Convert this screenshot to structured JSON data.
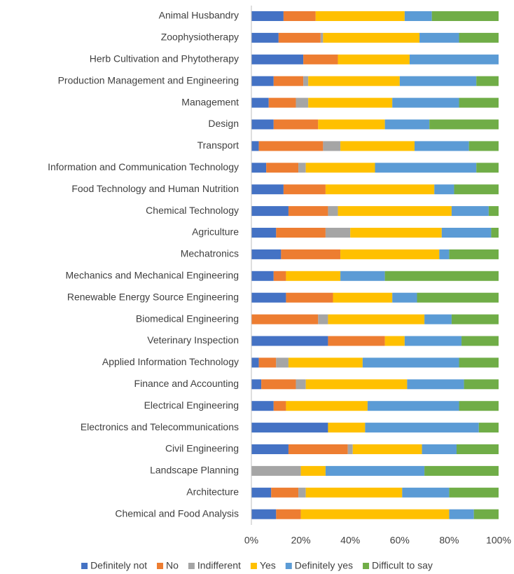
{
  "chart_data": {
    "type": "stacked_bar_horizontal",
    "categories": [
      "Animal Husbandry",
      "Zoophysiotherapy",
      "Herb Cultivation and Phytotherapy",
      "Production Management and Engineering",
      "Management",
      "Design",
      "Transport",
      "Information and Communication Technology",
      "Food Technology and Human Nutrition",
      "Chemical Technology",
      "Agriculture",
      "Mechatronics",
      "Mechanics and Mechanical Engineering",
      "Renewable Energy Source Engineering",
      "Biomedical Engineering",
      "Veterinary Inspection",
      "Applied Information Technology",
      "Finance and Accounting",
      "Electrical Engineering",
      "Electronics and Telecommunications",
      "Civil Engineering",
      "Landscape Planning",
      "Architecture",
      "Chemical and Food Analysis"
    ],
    "series": [
      {
        "name": "Definitely not",
        "color": "#4472c4",
        "values": [
          13,
          11,
          21,
          9,
          7,
          9,
          3,
          6,
          13,
          15,
          10,
          12,
          9,
          14,
          0,
          31,
          3,
          4,
          9,
          31,
          15,
          0,
          8,
          10
        ]
      },
      {
        "name": "No",
        "color": "#ed7d31",
        "values": [
          13,
          17,
          14,
          12,
          11,
          18,
          26,
          13,
          17,
          16,
          20,
          24,
          5,
          19,
          27,
          23,
          7,
          14,
          5,
          0,
          24,
          0,
          11,
          10
        ]
      },
      {
        "name": "Indifferent",
        "color": "#a5a5a5",
        "values": [
          0,
          1,
          0,
          2,
          5,
          0,
          7,
          3,
          0,
          4,
          10,
          0,
          0,
          0,
          4,
          0,
          5,
          4,
          0,
          0,
          2,
          20,
          3,
          0
        ]
      },
      {
        "name": "Yes",
        "color": "#ffc000",
        "values": [
          36,
          39,
          29,
          37,
          34,
          27,
          30,
          28,
          44,
          46,
          37,
          40,
          22,
          24,
          39,
          8,
          30,
          41,
          33,
          15,
          28,
          10,
          39,
          60
        ]
      },
      {
        "name": "Definitely yes",
        "color": "#5b9bd5",
        "values": [
          11,
          16,
          36,
          31,
          27,
          18,
          22,
          41,
          8,
          15,
          20,
          4,
          18,
          10,
          11,
          23,
          39,
          23,
          37,
          46,
          14,
          40,
          19,
          10
        ]
      },
      {
        "name": "Difficult to say",
        "color": "#70ad47",
        "values": [
          27,
          16,
          0,
          9,
          16,
          28,
          12,
          9,
          18,
          4,
          3,
          20,
          46,
          33,
          19,
          15,
          16,
          14,
          16,
          8,
          17,
          30,
          20,
          10
        ]
      }
    ],
    "xlim": [
      0,
      100
    ],
    "xticks": [
      {
        "value": 0,
        "label": "0%"
      },
      {
        "value": 20,
        "label": "20%"
      },
      {
        "value": 40,
        "label": "40%"
      },
      {
        "value": 60,
        "label": "60%"
      },
      {
        "value": 80,
        "label": "80%"
      },
      {
        "value": 100,
        "label": "100%"
      }
    ],
    "legend": "bottom"
  }
}
